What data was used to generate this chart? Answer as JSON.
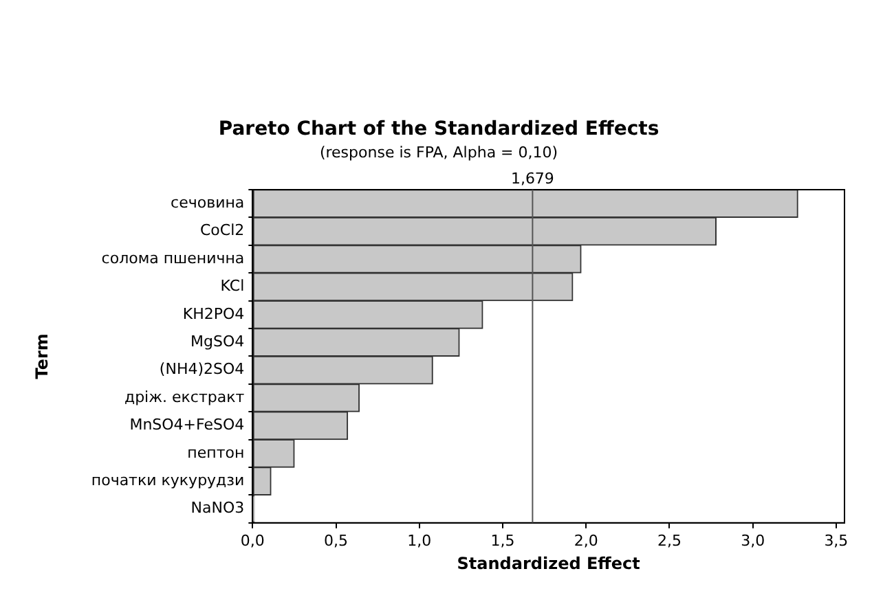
{
  "chart_data": {
    "type": "bar",
    "orientation": "horizontal",
    "title": "Pareto Chart of the Standardized Effects",
    "subtitle": "(response is FPA, Alpha = 0,10)",
    "xlabel": "Standardized Effect",
    "ylabel": "Term",
    "categories": [
      "сечовина",
      "CoCl2",
      "солома пшенична",
      "KCl",
      "KH2PO4",
      "MgSO4",
      "(NH4)2SO4",
      "дріж. екстракт",
      "MnSO4+FeSO4",
      "пептон",
      "початки кукурудзи",
      "NaNO3"
    ],
    "values": [
      3.27,
      2.78,
      1.97,
      1.92,
      1.38,
      1.24,
      1.08,
      0.64,
      0.57,
      0.25,
      0.11,
      0.01
    ],
    "color": "#c8c8c8",
    "xlim": [
      0,
      3.55
    ],
    "xticks": [
      {
        "value": 0,
        "label": "0,0"
      },
      {
        "value": 0.5,
        "label": "0,5"
      },
      {
        "value": 1,
        "label": "1,0"
      },
      {
        "value": 1.5,
        "label": "1,5"
      },
      {
        "value": 2,
        "label": "2,0"
      },
      {
        "value": 2.5,
        "label": "2,5"
      },
      {
        "value": 3,
        "label": "3,0"
      },
      {
        "value": 3.5,
        "label": "3,5"
      }
    ],
    "ref_lines": [
      {
        "axis": "x",
        "value": 1.679,
        "label": "1,679",
        "color": "#555555"
      }
    ],
    "grid": false,
    "legend": false
  }
}
